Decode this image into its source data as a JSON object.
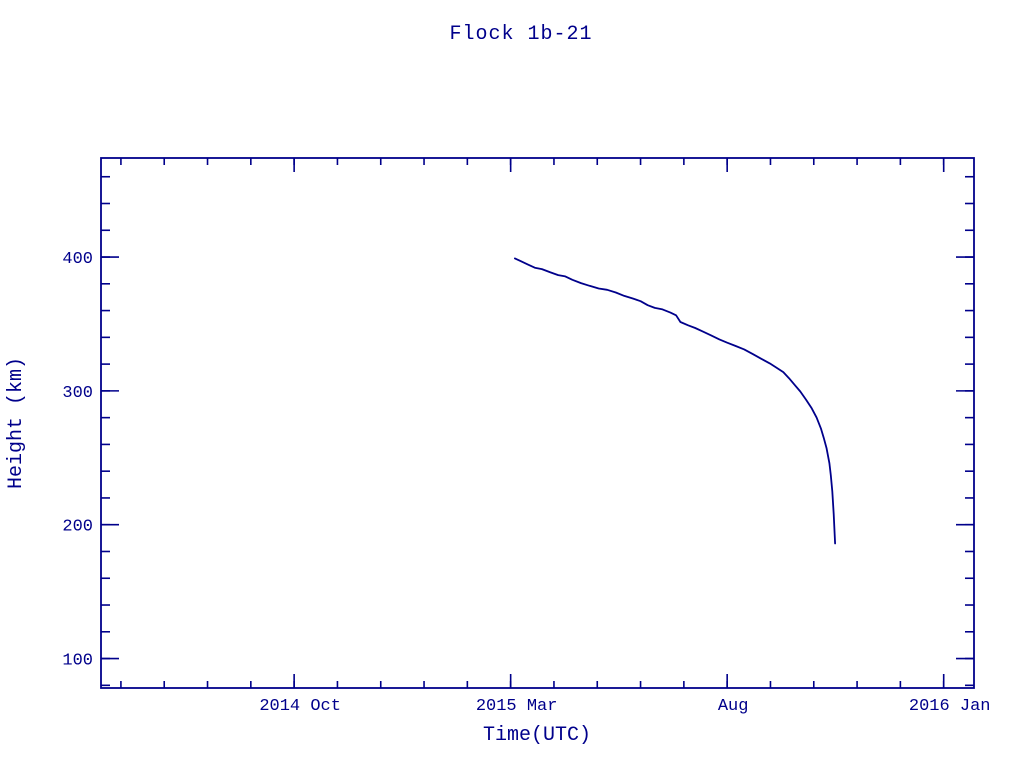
{
  "page": {
    "background": "#ffffff",
    "ink_color": "#00008B"
  },
  "chart_data": {
    "type": "line",
    "title": "Flock 1b-21",
    "xlabel": "Time(UTC)",
    "ylabel": "Height (km)",
    "grid": false,
    "legend": null,
    "line_color": "#00008B",
    "axis_color": "#00008B",
    "x_axis": {
      "unit": "months since 2014-10-01",
      "range": [
        -4.46,
        15.7
      ],
      "major_ticks": [
        {
          "t": 0,
          "label": "2014 Oct"
        },
        {
          "t": 5,
          "label": "2015 Mar"
        },
        {
          "t": 10,
          "label": "Aug"
        },
        {
          "t": 15,
          "label": "2016 Jan"
        }
      ],
      "minor_tick_step_months": 1
    },
    "y_axis": {
      "unit": "km",
      "range": [
        78,
        474
      ],
      "major_ticks": [
        100,
        200,
        300,
        400
      ],
      "minor_tick_step": 20
    },
    "series": [
      {
        "name": "Flock 1b-21 orbital height",
        "points_format": [
          "date",
          "height_km"
        ],
        "points": [
          [
            "2015-03-04",
            399
          ],
          [
            "2015-03-08",
            397
          ],
          [
            "2015-03-13",
            394.5
          ],
          [
            "2015-03-18",
            392
          ],
          [
            "2015-03-23",
            391
          ],
          [
            "2015-03-29",
            388.5
          ],
          [
            "2015-04-04",
            386.5
          ],
          [
            "2015-04-09",
            385.5
          ],
          [
            "2015-04-14",
            383
          ],
          [
            "2015-04-20",
            380.5
          ],
          [
            "2015-04-26",
            378.5
          ],
          [
            "2015-05-02",
            376.5
          ],
          [
            "2015-05-08",
            375.5
          ],
          [
            "2015-05-14",
            373.5
          ],
          [
            "2015-05-20",
            371
          ],
          [
            "2015-05-26",
            369
          ],
          [
            "2015-06-01",
            367
          ],
          [
            "2015-06-06",
            364
          ],
          [
            "2015-06-11",
            362
          ],
          [
            "2015-06-16",
            361
          ],
          [
            "2015-06-22",
            358.5
          ],
          [
            "2015-06-26",
            356.5
          ],
          [
            "2015-06-29",
            351.5
          ],
          [
            "2015-07-04",
            349
          ],
          [
            "2015-07-09",
            347
          ],
          [
            "2015-07-14",
            344.5
          ],
          [
            "2015-07-20",
            341.5
          ],
          [
            "2015-07-26",
            338.5
          ],
          [
            "2015-08-01",
            336
          ],
          [
            "2015-08-07",
            333.5
          ],
          [
            "2015-08-13",
            331
          ],
          [
            "2015-08-19",
            327.5
          ],
          [
            "2015-08-25",
            324
          ],
          [
            "2015-08-31",
            320.5
          ],
          [
            "2015-09-05",
            317.5
          ],
          [
            "2015-09-10",
            314
          ],
          [
            "2015-09-14",
            309.5
          ],
          [
            "2015-09-18",
            304.5
          ],
          [
            "2015-09-22",
            299.5
          ],
          [
            "2015-09-26",
            293.5
          ],
          [
            "2015-09-30",
            287
          ],
          [
            "2015-10-03",
            280
          ],
          [
            "2015-10-06",
            272
          ],
          [
            "2015-10-08",
            265
          ],
          [
            "2015-10-10",
            257
          ],
          [
            "2015-10-12",
            246
          ],
          [
            "2015-10-13",
            237
          ],
          [
            "2015-10-14",
            225
          ],
          [
            "2015-10-15",
            208
          ],
          [
            "2015-10-16",
            186
          ]
        ]
      }
    ]
  }
}
